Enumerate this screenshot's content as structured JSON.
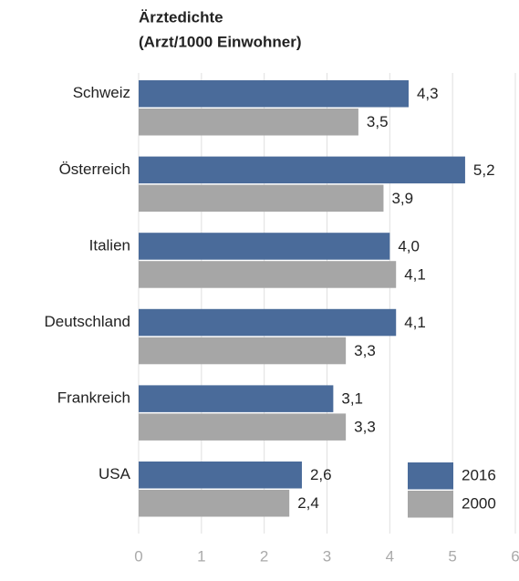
{
  "chart_data": {
    "type": "bar",
    "orientation": "horizontal",
    "title": "Ärztedichte",
    "subtitle": "(Arzt/1000 Einwohner)",
    "categories": [
      "Schweiz",
      "Österreich",
      "Italien",
      "Deutschland",
      "Frankreich",
      "USA"
    ],
    "series": [
      {
        "name": "2016",
        "color": "#4a6b9a",
        "values": [
          4.3,
          5.2,
          4.0,
          4.1,
          3.1,
          2.6
        ],
        "value_labels": [
          "4,3",
          "5,2",
          "4,0",
          "4,1",
          "3,1",
          "2,6"
        ]
      },
      {
        "name": "2000",
        "color": "#a6a6a6",
        "values": [
          3.5,
          3.9,
          4.1,
          3.3,
          3.3,
          2.4
        ],
        "value_labels": [
          "3,5",
          "3,9",
          "4,1",
          "3,3",
          "3,3",
          "2,4"
        ]
      }
    ],
    "xlim": [
      0,
      6
    ],
    "xticks": [
      0,
      1,
      2,
      3,
      4,
      5,
      6
    ],
    "grid": true,
    "legend": "lower right"
  }
}
